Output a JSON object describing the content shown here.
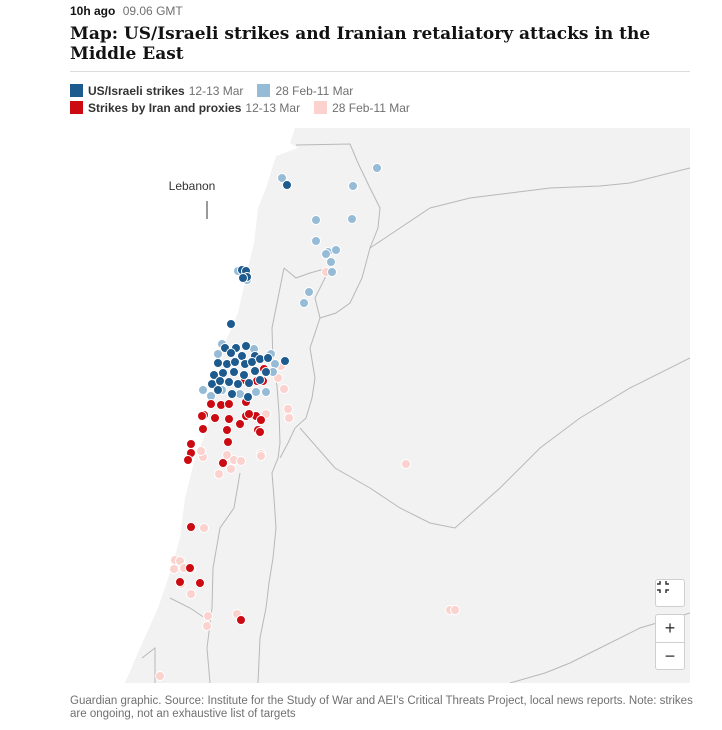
{
  "header": {
    "time_ago": "10h ago",
    "timestamp": "09.06 GMT",
    "title": "Map: US/Israeli strikes and Iranian retaliatory attacks in the Middle East"
  },
  "legend": {
    "us_label": "US/Israeli strikes",
    "us_recent_range": "12-13 Mar",
    "us_earlier_range": "28 Feb-11 Mar",
    "iran_label": "Strikes by Iran and proxies",
    "iran_recent_range": "12-13 Mar",
    "iran_earlier_range": "28 Feb-11 Mar"
  },
  "colors": {
    "us_recent": "#1d5a8e",
    "us_earlier": "#96bbd6",
    "iran_recent": "#cc0a11",
    "iran_earlier": "#fbd2cd",
    "land": "#f2f2f2",
    "water": "#ffffff",
    "border": "#b8b8b8"
  },
  "map": {
    "place_label": "Lebanon",
    "controls": {
      "fullscreen_icon": "collapse-icon",
      "zoom_in": "+",
      "zoom_out": "−"
    },
    "strikes": {
      "us_recent": [
        [
          217,
          57
        ],
        [
          172,
          142
        ],
        [
          176,
          143
        ],
        [
          177,
          149
        ],
        [
          173,
          150
        ],
        [
          161,
          196
        ],
        [
          155,
          220
        ],
        [
          166,
          220
        ],
        [
          176,
          218
        ],
        [
          161,
          225
        ],
        [
          172,
          228
        ],
        [
          185,
          228
        ],
        [
          148,
          235
        ],
        [
          157,
          236
        ],
        [
          165,
          234
        ],
        [
          175,
          236
        ],
        [
          182,
          234
        ],
        [
          190,
          231
        ],
        [
          198,
          230
        ],
        [
          215,
          233
        ],
        [
          144,
          247
        ],
        [
          153,
          245
        ],
        [
          164,
          244
        ],
        [
          174,
          247
        ],
        [
          185,
          243
        ],
        [
          196,
          244
        ],
        [
          142,
          256
        ],
        [
          150,
          253
        ],
        [
          159,
          254
        ],
        [
          168,
          256
        ],
        [
          179,
          255
        ],
        [
          190,
          252
        ],
        [
          148,
          262
        ],
        [
          162,
          266
        ],
        [
          178,
          269
        ]
      ],
      "us_earlier": [
        [
          307,
          40
        ],
        [
          212,
          50
        ],
        [
          283,
          58
        ],
        [
          246,
          92
        ],
        [
          282,
          91
        ],
        [
          246,
          113
        ],
        [
          258,
          124
        ],
        [
          266,
          122
        ],
        [
          256,
          126
        ],
        [
          261,
          134
        ],
        [
          262,
          144
        ],
        [
          168,
          143
        ],
        [
          177,
          152
        ],
        [
          239,
          164
        ],
        [
          234,
          175
        ],
        [
          152,
          216
        ],
        [
          184,
          221
        ],
        [
          148,
          226
        ],
        [
          201,
          226
        ],
        [
          205,
          236
        ],
        [
          203,
          244
        ],
        [
          133,
          262
        ],
        [
          152,
          262
        ],
        [
          170,
          266
        ],
        [
          196,
          264
        ],
        [
          141,
          268
        ],
        [
          186,
          264
        ]
      ],
      "iran_recent": [
        [
          194,
          241
        ],
        [
          193,
          253
        ],
        [
          175,
          252
        ],
        [
          187,
          253
        ],
        [
          141,
          276
        ],
        [
          151,
          277
        ],
        [
          159,
          276
        ],
        [
          176,
          274
        ],
        [
          145,
          290
        ],
        [
          134,
          287
        ],
        [
          159,
          291
        ],
        [
          133,
          301
        ],
        [
          157,
          302
        ],
        [
          176,
          288
        ],
        [
          186,
          288
        ],
        [
          191,
          292
        ],
        [
          170,
          296
        ],
        [
          132,
          288
        ],
        [
          188,
          302
        ],
        [
          158,
          314
        ],
        [
          179,
          286
        ],
        [
          190,
          304
        ],
        [
          121,
          316
        ],
        [
          121,
          325
        ],
        [
          118,
          332
        ],
        [
          153,
          335
        ],
        [
          121,
          399
        ],
        [
          110,
          454
        ],
        [
          130,
          455
        ],
        [
          120,
          440
        ],
        [
          171,
          492
        ]
      ],
      "iran_earlier": [
        [
          256,
          144
        ],
        [
          211,
          238
        ],
        [
          214,
          261
        ],
        [
          218,
          281
        ],
        [
          219,
          290
        ],
        [
          196,
          286
        ],
        [
          208,
          250
        ],
        [
          157,
          327
        ],
        [
          149,
          346
        ],
        [
          164,
          332
        ],
        [
          171,
          333
        ],
        [
          191,
          326
        ],
        [
          133,
          329
        ],
        [
          131,
          323
        ],
        [
          161,
          341
        ],
        [
          191,
          328
        ],
        [
          336,
          336
        ],
        [
          134,
          400
        ],
        [
          105,
          432
        ],
        [
          110,
          433
        ],
        [
          114,
          440
        ],
        [
          121,
          441
        ],
        [
          104,
          441
        ],
        [
          111,
          456
        ],
        [
          138,
          488
        ],
        [
          137,
          498
        ],
        [
          167,
          486
        ],
        [
          380,
          482
        ],
        [
          385,
          482
        ],
        [
          121,
          466
        ],
        [
          90,
          548
        ]
      ]
    }
  },
  "footer": {
    "source_text": "Guardian graphic. Source: Institute for the Study of War and AEI's Critical Threats Project, local news reports. Note: strikes are ongoing, not an exhaustive list of targets"
  }
}
